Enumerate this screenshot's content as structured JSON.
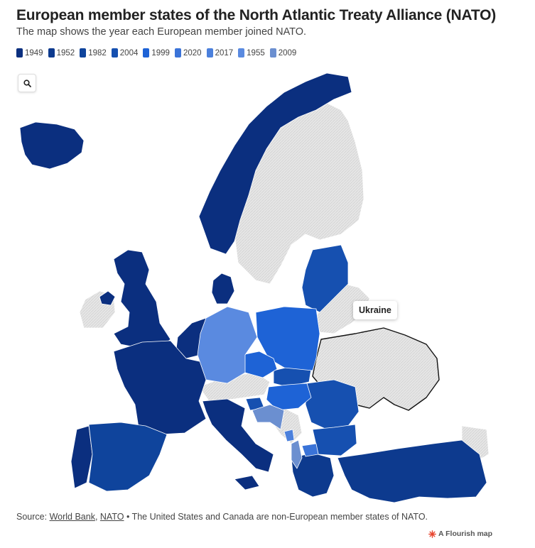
{
  "title": "European member states of the North Atlantic Treaty Alliance (NATO)",
  "subtitle": "The map shows the year each European member joined NATO.",
  "legend": [
    {
      "label": "1949",
      "color": "#0b2f7f"
    },
    {
      "label": "1952",
      "color": "#0d3a8e"
    },
    {
      "label": "1982",
      "color": "#0f449c"
    },
    {
      "label": "2004",
      "color": "#1650b0"
    },
    {
      "label": "1999",
      "color": "#1e63d6"
    },
    {
      "label": "2020",
      "color": "#3a73d8"
    },
    {
      "label": "2017",
      "color": "#4b80dc"
    },
    {
      "label": "1955",
      "color": "#5a8ae0"
    },
    {
      "label": "2009",
      "color": "#6b8fd0"
    }
  ],
  "non_member_color": "#e4e4e4",
  "search_icon": "search-icon",
  "tooltip": {
    "label": "Ukraine"
  },
  "footer": {
    "prefix": "Source: ",
    "link1": "World Bank",
    "sep": ", ",
    "link2": "NATO",
    "note": " • The United States and Canada are non-European member states of NATO."
  },
  "credit": {
    "label": "A Flourish map",
    "icon": "flourish-logo-icon"
  }
}
